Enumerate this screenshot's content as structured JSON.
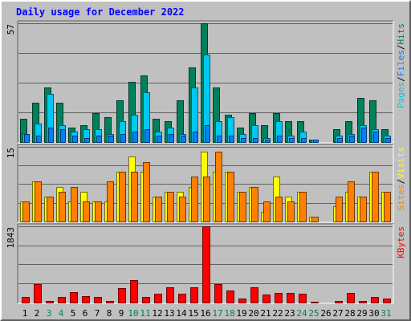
{
  "title": "Daily usage for December 2022",
  "chart_data": [
    {
      "type": "bar",
      "panel": "pages-files-hits",
      "ylabel": "Pages / Files / Hits",
      "ymax_label": "57",
      "ylim": [
        0,
        57
      ],
      "categories": [
        "1",
        "2",
        "3",
        "4",
        "5",
        "6",
        "7",
        "8",
        "9",
        "10",
        "11",
        "12",
        "13",
        "14",
        "15",
        "16",
        "17",
        "18",
        "19",
        "20",
        "21",
        "22",
        "23",
        "24",
        "25",
        "26",
        "27",
        "28",
        "29",
        "30",
        "31"
      ],
      "weekend_days": [
        "3",
        "4",
        "10",
        "11",
        "17",
        "18",
        "24",
        "25",
        "31"
      ],
      "series": [
        {
          "name": "Hits",
          "color": "#00805c",
          "values": [
            11,
            19,
            26,
            19,
            7,
            8,
            14,
            12,
            20,
            29,
            32,
            11,
            10,
            20,
            36,
            57,
            26,
            13,
            7,
            14,
            8,
            14,
            10,
            10,
            1,
            0,
            6,
            10,
            21,
            20,
            6
          ]
        },
        {
          "name": "Files",
          "color": "#00c8f0",
          "values": [
            4,
            9,
            23,
            8,
            5,
            6,
            6,
            4,
            10,
            13,
            24,
            5,
            7,
            4,
            26,
            42,
            10,
            12,
            4,
            8,
            2,
            10,
            3,
            5,
            1,
            0,
            3,
            4,
            8,
            6,
            3
          ]
        },
        {
          "name": "Pages",
          "color": "#0080ff",
          "values": [
            4,
            3,
            7,
            6,
            3,
            2,
            3,
            3,
            4,
            5,
            6,
            3,
            4,
            3,
            5,
            8,
            3,
            3,
            2,
            2,
            1,
            3,
            2,
            2,
            1,
            0,
            2,
            3,
            7,
            5,
            2
          ]
        }
      ],
      "labels": [
        {
          "text": "Pages",
          "color": "#00c8f0"
        },
        {
          "text": "/",
          "color": "#000000"
        },
        {
          "text": "Files",
          "color": "#0080ff"
        },
        {
          "text": "/",
          "color": "#000000"
        },
        {
          "text": "Hits",
          "color": "#00805c"
        }
      ]
    },
    {
      "type": "bar",
      "panel": "sites-visits",
      "ylabel": "Sites / Visits",
      "ymax_label": "15",
      "ylim": [
        0,
        15
      ],
      "categories": [
        "1",
        "2",
        "3",
        "4",
        "5",
        "6",
        "7",
        "8",
        "9",
        "10",
        "11",
        "12",
        "13",
        "14",
        "15",
        "16",
        "17",
        "18",
        "19",
        "20",
        "21",
        "22",
        "23",
        "24",
        "25",
        "26",
        "27",
        "28",
        "29",
        "30",
        "31"
      ],
      "series": [
        {
          "name": "Visits",
          "color": "#ffff00",
          "values": [
            4,
            8,
            5,
            7,
            4,
            6,
            4,
            4,
            10,
            13,
            10,
            5,
            6,
            6,
            7,
            14,
            10,
            10,
            6,
            7,
            2,
            9,
            5,
            6,
            1,
            0,
            3,
            6,
            5,
            10,
            6
          ]
        },
        {
          "name": "Sites",
          "color": "#ff8000",
          "values": [
            4,
            8,
            5,
            6,
            7,
            4,
            4,
            8,
            10,
            10,
            12,
            5,
            6,
            5,
            9,
            9,
            14,
            10,
            6,
            7,
            4,
            5,
            4,
            6,
            1,
            0,
            5,
            8,
            5,
            10,
            6
          ]
        }
      ],
      "labels": [
        {
          "text": "Sites",
          "color": "#ff8000"
        },
        {
          "text": "/",
          "color": "#000000"
        },
        {
          "text": "Visits",
          "color": "#ffff00"
        }
      ]
    },
    {
      "type": "bar",
      "panel": "kbytes",
      "ylabel": "KBytes",
      "ymax_label": "1843",
      "ylim": [
        0,
        1843
      ],
      "categories": [
        "1",
        "2",
        "3",
        "4",
        "5",
        "6",
        "7",
        "8",
        "9",
        "10",
        "11",
        "12",
        "13",
        "14",
        "15",
        "16",
        "17",
        "18",
        "19",
        "20",
        "21",
        "22",
        "23",
        "24",
        "25",
        "26",
        "27",
        "28",
        "29",
        "30",
        "31"
      ],
      "series": [
        {
          "name": "KBytes",
          "color": "#ff0000",
          "values": [
            135,
            445,
            30,
            135,
            260,
            150,
            130,
            30,
            340,
            535,
            135,
            210,
            360,
            210,
            360,
            1843,
            440,
            285,
            90,
            360,
            190,
            225,
            225,
            220,
            15,
            0,
            30,
            230,
            30,
            140,
            105
          ]
        }
      ],
      "labels": [
        {
          "text": "KBytes",
          "color": "#ff0000"
        }
      ]
    }
  ]
}
